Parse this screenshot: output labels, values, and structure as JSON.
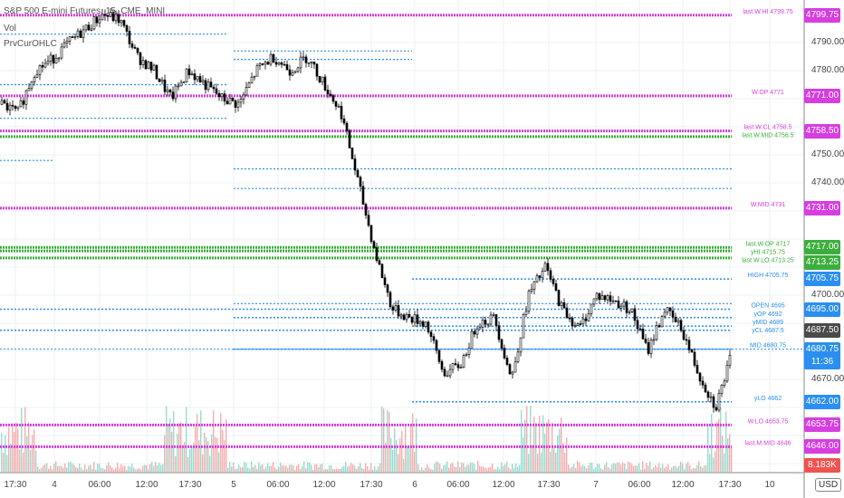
{
  "header": {
    "symbol": "S&P 500 E-mini Futures, 15, CME_MINI",
    "indicators": [
      "Vol",
      "PrvCurOHLC"
    ]
  },
  "currency": "USD",
  "colors": {
    "magenta": "#d63ee0",
    "green": "#3cae3c",
    "blue": "#2a8ff0",
    "candle": "#000000",
    "vol_up": "#7fd3c3",
    "vol_down": "#f29b9b",
    "last": "#4a4a4a",
    "vol_badge": "#ef5350"
  },
  "chart_data": {
    "type": "candlestick",
    "ylim": [
      4640,
      4805
    ],
    "y_ticks": [
      4790,
      4780,
      4770,
      4760,
      4750,
      4740,
      4730,
      4720,
      4710,
      4700,
      4690,
      4680,
      4670,
      4660,
      4650,
      4640
    ],
    "x_ticks": [
      "17:30",
      "4",
      "06:00",
      "12:00",
      "17:30",
      "5",
      "06:00",
      "12:00",
      "17:30",
      "6",
      "06:00",
      "12:00",
      "17:30",
      "7",
      "06:00",
      "12:00",
      "17:30",
      "10"
    ],
    "close_path": [
      4768,
      4765,
      4780,
      4784,
      4790,
      4795,
      4800,
      4798,
      4785,
      4780,
      4770,
      4780,
      4775,
      4770,
      4768,
      4780,
      4785,
      4780,
      4785,
      4775,
      4765,
      4740,
      4715,
      4695,
      4692,
      4690,
      4672,
      4675,
      4690,
      4692,
      4670,
      4700,
      4710,
      4695,
      4688,
      4700,
      4698,
      4695,
      4680,
      4695,
      4688,
      4672,
      4660,
      4680
    ],
    "levels": [
      {
        "price": 4799.75,
        "color": "magenta",
        "label": "last.W.HI 4799.75"
      },
      {
        "price": 4771,
        "color": "magenta",
        "label": "W.OP 4771"
      },
      {
        "price": 4758.5,
        "color": "magenta",
        "label": "last.W.CL 4758.5"
      },
      {
        "price": 4756.5,
        "color": "green",
        "label": "last.W.MID 4756.5"
      },
      {
        "price": 4731,
        "color": "magenta",
        "label": "W.MID 4731"
      },
      {
        "price": 4717,
        "color": "green",
        "label": "last.W.OP 4717"
      },
      {
        "price": 4715.75,
        "color": "green",
        "label": "yHI 4715.75"
      },
      {
        "price": 4713.25,
        "color": "green",
        "label": "last.W.LO 4713.25"
      },
      {
        "price": 4705.75,
        "color": "blue",
        "label": "HIGH 4705.75"
      },
      {
        "price": 4695,
        "color": "blue",
        "label": "OPEN 4695"
      },
      {
        "price": 4692,
        "color": "blue",
        "label": "yOP 4692"
      },
      {
        "price": 4689,
        "color": "blue",
        "label": "yMID 4689"
      },
      {
        "price": 4687.5,
        "color": "blue",
        "label": "yCL 4687.5"
      },
      {
        "price": 4680.75,
        "color": "blue",
        "label": "MID 4680.75"
      },
      {
        "price": 4662,
        "color": "blue",
        "label": "yLO 4662"
      },
      {
        "price": 4653.75,
        "color": "magenta",
        "label": "W.LO 4653.75"
      },
      {
        "price": 4646,
        "color": "magenta",
        "label": "last.M.MID 4646"
      }
    ],
    "price_badges": [
      {
        "price": 4799.75,
        "text": "4799.75",
        "color": "magenta"
      },
      {
        "price": 4771,
        "text": "4771.00",
        "color": "magenta"
      },
      {
        "price": 4758.5,
        "text": "4758.50",
        "color": "magenta"
      },
      {
        "price": 4731,
        "text": "4731.00",
        "color": "magenta"
      },
      {
        "price": 4717,
        "text": "4717.00",
        "color": "green"
      },
      {
        "price": 4713.25,
        "text": "4713.25",
        "color": "green"
      },
      {
        "price": 4705.75,
        "text": "4705.75",
        "color": "blue"
      },
      {
        "price": 4695,
        "text": "4695.00",
        "color": "blue"
      },
      {
        "price": 4687.5,
        "text": "4687.50",
        "color": "last"
      },
      {
        "price": 4680.75,
        "text": "4680.75",
        "color": "blue",
        "sub": "11:36"
      },
      {
        "price": 4662,
        "text": "4662.00",
        "color": "blue"
      },
      {
        "price": 4653.75,
        "text": "4653.75",
        "color": "magenta"
      },
      {
        "price": 4646,
        "text": "4646.00",
        "color": "magenta"
      }
    ],
    "volume_badge": "8.183K",
    "last_price": 4680.75
  }
}
